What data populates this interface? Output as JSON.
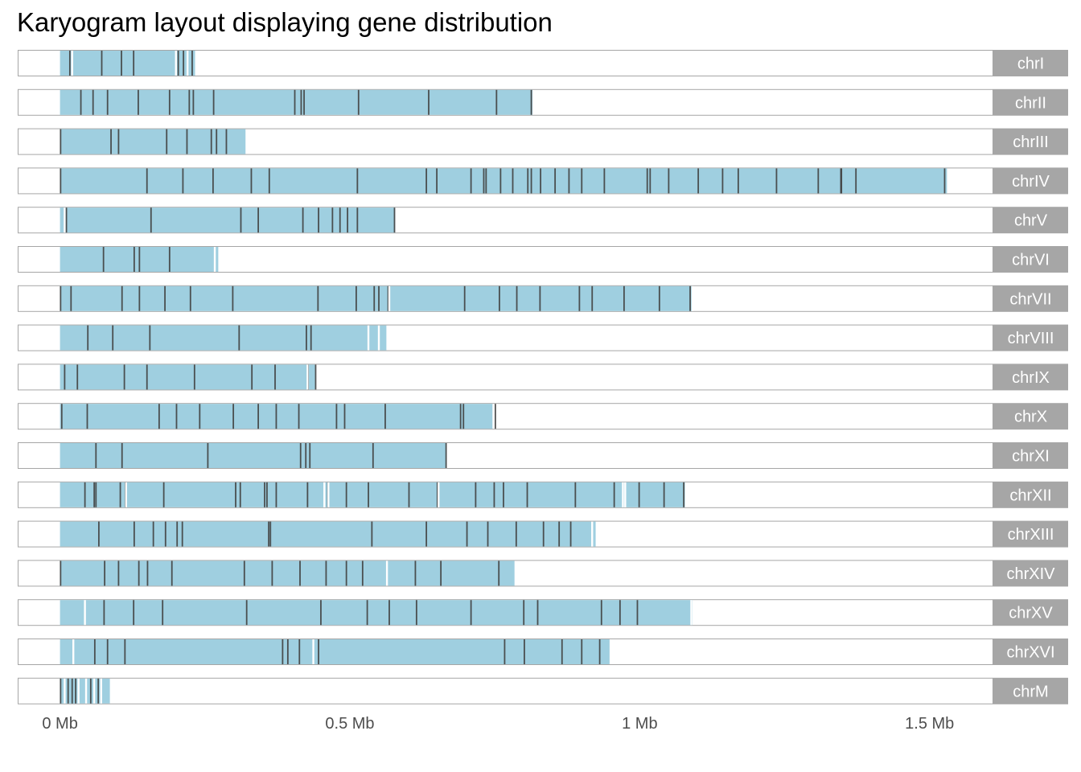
{
  "chart_data": {
    "type": "karyogram",
    "title": "Karyogram layout displaying gene distribution",
    "x_ticks": [
      {
        "value": 0,
        "label": "0 Mb"
      },
      {
        "value": 0.5,
        "label": "0.5 Mb"
      },
      {
        "value": 1.0,
        "label": "1 Mb"
      },
      {
        "value": 1.5,
        "label": "1.5 Mb"
      }
    ],
    "x_unit": "Mb",
    "xlim": [
      -0.073,
      1.61
    ],
    "colors": {
      "gene_fill": "#9fcfe0",
      "strip": "#a6a6a6",
      "strip_text": "#ffffff",
      "panel_border": "#a6a6a6",
      "dark_mark": "#404040",
      "light_mark": "#ffffff"
    },
    "chromosomes": [
      {
        "name": "chrI",
        "length": 0.233,
        "dark": [
          0.017,
          0.072,
          0.106,
          0.127,
          0.204,
          0.213,
          0.228
        ],
        "light": [
          0.021,
          0.2,
          0.22
        ]
      },
      {
        "name": "chrII",
        "length": 0.815,
        "dark": [
          0.036,
          0.057,
          0.082,
          0.135,
          0.189,
          0.223,
          0.23,
          0.265,
          0.405,
          0.416,
          0.421,
          0.515,
          0.636,
          0.753,
          0.813
        ]
      },
      {
        "name": "chrIII",
        "length": 0.32,
        "dark": [
          0.001,
          0.088,
          0.101,
          0.184,
          0.219,
          0.261,
          0.27,
          0.287
        ]
      },
      {
        "name": "chrIV",
        "length": 1.53,
        "dark": [
          0.001,
          0.15,
          0.212,
          0.264,
          0.33,
          0.361,
          0.513,
          0.632,
          0.65,
          0.709,
          0.731,
          0.735,
          0.76,
          0.781,
          0.807,
          0.813,
          0.829,
          0.854,
          0.878,
          0.9,
          0.939,
          1.013,
          1.018,
          1.05,
          1.101,
          1.143,
          1.17,
          1.236,
          1.308,
          1.348,
          1.347,
          1.373,
          1.526
        ]
      },
      {
        "name": "chrV",
        "length": 0.578,
        "dark": [
          0.011,
          0.157,
          0.312,
          0.342,
          0.419,
          0.446,
          0.47,
          0.483,
          0.496,
          0.513,
          0.577
        ],
        "light": [
          0.008
        ]
      },
      {
        "name": "chrVI",
        "length": 0.273,
        "dark": [
          0.075,
          0.128,
          0.137,
          0.189
        ],
        "light": [
          0.267
        ]
      },
      {
        "name": "chrVII",
        "length": 1.091,
        "dark": [
          0.001,
          0.019,
          0.107,
          0.137,
          0.181,
          0.225,
          0.298,
          0.445,
          0.511,
          0.542,
          0.55,
          0.566,
          0.698,
          0.758,
          0.788,
          0.828,
          0.896,
          0.918,
          0.973,
          1.034,
          1.087
        ],
        "light": [
          0.568,
          1.091
        ]
      },
      {
        "name": "chrVIII",
        "length": 0.563,
        "dark": [
          0.048,
          0.091,
          0.155,
          0.309,
          0.425,
          0.433
        ],
        "light": [
          0.532,
          0.55
        ]
      },
      {
        "name": "chrIX",
        "length": 0.44,
        "dark": [
          0.008,
          0.03,
          0.111,
          0.15,
          0.232,
          0.331,
          0.371,
          0.428,
          0.441
        ],
        "light": [
          0.427
        ]
      },
      {
        "name": "chrX",
        "length": 0.746,
        "dark": [
          0.003,
          0.047,
          0.171,
          0.201,
          0.241,
          0.299,
          0.342,
          0.373,
          0.412,
          0.477,
          0.491,
          0.561,
          0.691,
          0.696,
          0.751
        ]
      },
      {
        "name": "chrXI",
        "length": 0.667,
        "dark": [
          0.062,
          0.107,
          0.255,
          0.415,
          0.424,
          0.431,
          0.54,
          0.666
        ]
      },
      {
        "name": "chrXII",
        "length": 1.078,
        "dark": [
          0.043,
          0.059,
          0.062,
          0.104,
          0.113,
          0.179,
          0.303,
          0.311,
          0.353,
          0.357,
          0.373,
          0.427,
          0.462,
          0.494,
          0.532,
          0.602,
          0.651,
          0.717,
          0.749,
          0.765,
          0.806,
          0.889,
          0.956,
          0.999,
          1.042,
          1.076
        ],
        "light": [
          0.114,
          0.456,
          0.463,
          0.653,
          0.971,
          0.975
        ]
      },
      {
        "name": "chrXIII",
        "length": 0.924,
        "dark": [
          0.067,
          0.128,
          0.161,
          0.182,
          0.202,
          0.211,
          0.36,
          0.363,
          0.538,
          0.632,
          0.702,
          0.738,
          0.787,
          0.834,
          0.861,
          0.881
        ],
        "light": [
          0.918
        ]
      },
      {
        "name": "chrXIV",
        "length": 0.784,
        "dark": [
          0.001,
          0.077,
          0.101,
          0.136,
          0.151,
          0.193,
          0.318,
          0.366,
          0.414,
          0.459,
          0.494,
          0.522,
          0.613,
          0.657,
          0.757
        ],
        "light": [
          0.564
        ]
      },
      {
        "name": "chrXV",
        "length": 1.091,
        "dark": [
          0.076,
          0.127,
          0.177,
          0.322,
          0.45,
          0.53,
          0.568,
          0.615,
          0.709,
          0.8,
          0.824,
          0.934,
          0.966,
          0.996
        ],
        "light": [
          0.043,
          1.089
        ]
      },
      {
        "name": "chrXVI",
        "length": 0.948,
        "dark": [
          0.06,
          0.082,
          0.112,
          0.384,
          0.393,
          0.413,
          0.446,
          0.767,
          0.801,
          0.866,
          0.9,
          0.931
        ],
        "light": [
          0.023,
          0.437
        ]
      },
      {
        "name": "chrM",
        "length": 0.086,
        "dark": [
          0.001,
          0.014,
          0.021,
          0.027,
          0.053,
          0.066
        ],
        "light": [
          0.008,
          0.032,
          0.045,
          0.059,
          0.071
        ]
      }
    ]
  }
}
